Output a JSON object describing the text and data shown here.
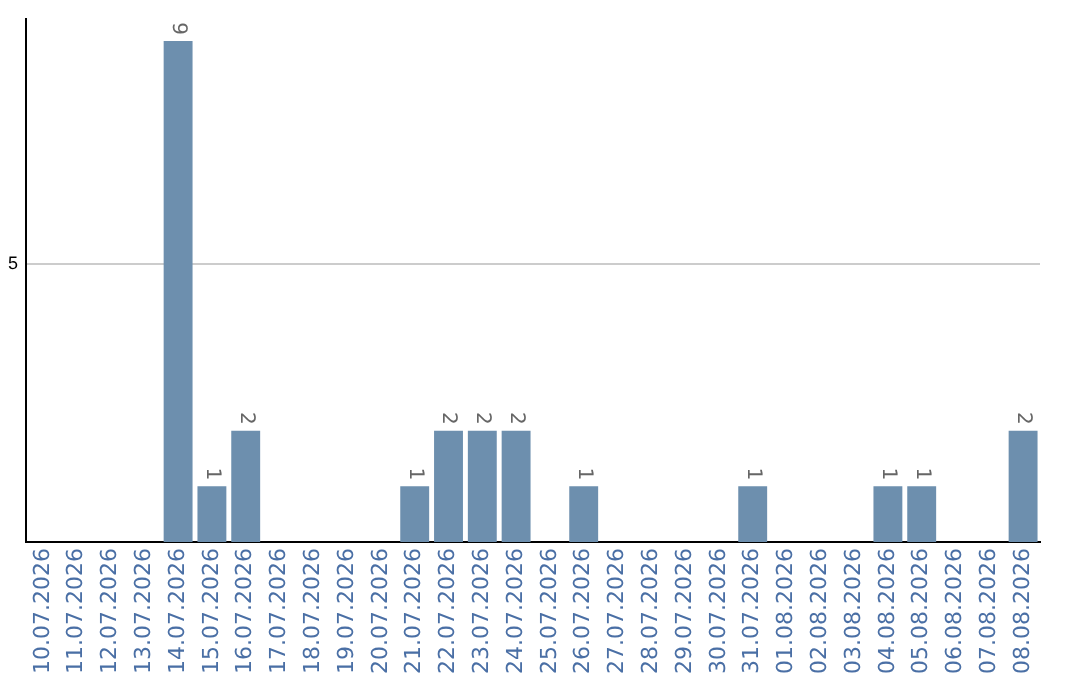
{
  "chart_data": {
    "type": "bar",
    "categories": [
      "10.07.2026",
      "11.07.2026",
      "12.07.2026",
      "13.07.2026",
      "14.07.2026",
      "15.07.2026",
      "16.07.2026",
      "17.07.2026",
      "18.07.2026",
      "19.07.2026",
      "20.07.2026",
      "21.07.2026",
      "22.07.2026",
      "23.07.2026",
      "24.07.2026",
      "25.07.2026",
      "26.07.2026",
      "27.07.2026",
      "28.07.2026",
      "29.07.2026",
      "30.07.2026",
      "31.07.2026",
      "01.08.2026",
      "02.08.2026",
      "03.08.2026",
      "04.08.2026",
      "05.08.2026",
      "06.08.2026",
      "07.08.2026",
      "08.08.2026"
    ],
    "values": [
      0,
      0,
      0,
      0,
      9,
      1,
      2,
      0,
      0,
      0,
      0,
      1,
      2,
      2,
      2,
      0,
      1,
      0,
      0,
      0,
      0,
      1,
      0,
      0,
      0,
      1,
      1,
      0,
      0,
      2
    ],
    "color": "#6d8fae",
    "value_labels": [
      null,
      null,
      null,
      null,
      "9",
      "1",
      "2",
      null,
      null,
      null,
      null,
      "1",
      "2",
      "2",
      "2",
      null,
      "1",
      null,
      null,
      null,
      null,
      "1",
      null,
      null,
      null,
      "1",
      "1",
      null,
      null,
      "2"
    ],
    "ylim": [
      0,
      9.4
    ],
    "yticks": [
      5
    ],
    "grid": "y",
    "legend": false
  }
}
